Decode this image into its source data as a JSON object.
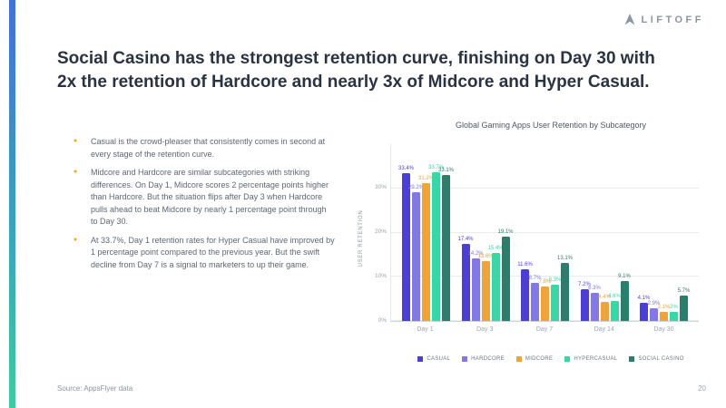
{
  "logo": {
    "text": "LIFTOFF",
    "icon": "up-arrow-icon"
  },
  "slide": {
    "title": "Social Casino has the strongest retention curve, finishing on Day 30 with 2x the retention of Hardcore and nearly 3x of Midcore and Hyper Casual.",
    "bullets": [
      "Casual is the crowd-pleaser that consistently comes in second at every stage of the retention curve.",
      "Midcore and Hardcore are similar subcategories with striking differences. On Day 1, Midcore scores 2 percentage points higher than Hardcore. But the situation flips after Day 3 when Hardcore pulls ahead to beat Midcore by nearly 1 percentage point through to Day 30.",
      "At 33.7%, Day 1 retention rates for Hyper Casual have improved by 1 percentage point compared to the previous year. But the swift decline from Day 7 is a signal to marketers to up their game."
    ],
    "source": "Source: AppsFlyer data",
    "page_number": "20"
  },
  "chart_data": {
    "type": "bar",
    "title": "Global Gaming Apps User Retention by Subcategory",
    "xlabel": "",
    "ylabel": "USER RETENTION",
    "categories": [
      "Day 1",
      "Day 3",
      "Day 7",
      "Day 14",
      "Day 30"
    ],
    "series": [
      {
        "name": "CASUAL",
        "color": "#4c3fd4",
        "values": [
          33.4,
          17.4,
          11.6,
          7.2,
          4.1
        ]
      },
      {
        "name": "HARDCORE",
        "color": "#8279e4",
        "values": [
          29.2,
          14.2,
          8.7,
          6.3,
          2.9
        ]
      },
      {
        "name": "MIDCORE",
        "color": "#eea33b",
        "values": [
          31.2,
          13.6,
          7.8,
          4.4,
          2.1
        ]
      },
      {
        "name": "HYPERCASUAL",
        "color": "#3bd6a5",
        "values": [
          33.7,
          15.4,
          8.3,
          4.6,
          2.0
        ]
      },
      {
        "name": "SOCIAL CASINO",
        "color": "#2d7c6c",
        "values": [
          33.1,
          19.1,
          13.1,
          9.1,
          5.7
        ]
      }
    ],
    "ylim": [
      0,
      40
    ],
    "yticks": [
      "0%",
      "10%",
      "20%",
      "30%"
    ],
    "grid": true,
    "legend_position": "bottom"
  },
  "colors": {
    "accent_bullet": "#f5a623",
    "title_text": "#2a3342",
    "strip_gradient_top": "#3d74d1",
    "strip_gradient_mid": "#3f9fc0",
    "strip_gradient_bottom": "#41c9a2"
  }
}
